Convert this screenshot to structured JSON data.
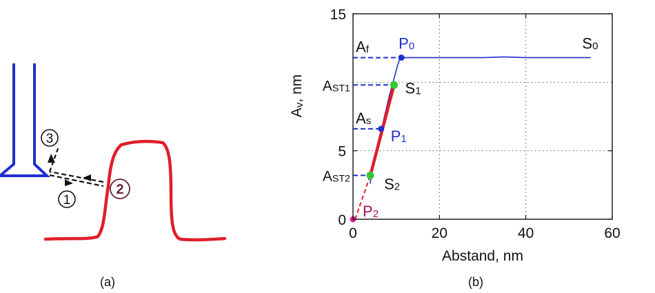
{
  "panel_a": {
    "caption": "(a)",
    "steps": [
      "3",
      "1",
      "2"
    ],
    "colors": {
      "tip": "#1f2fd0",
      "sample": "#e11d2a",
      "path": "#111111",
      "step2": "#6b1f3a"
    }
  },
  "panel_b": {
    "caption": "(b)"
  },
  "chart_data": {
    "type": "line",
    "xlabel": "Abstand, nm",
    "ylabel": "Av, nm",
    "xlim": [
      0,
      60
    ],
    "ylim": [
      0,
      15
    ],
    "xticks": [
      0,
      20,
      40,
      60
    ],
    "yticks": [
      0,
      5,
      15
    ],
    "grid": true,
    "colors": {
      "approach": "#1f2fd0",
      "fit": "#e11d2a",
      "ref": "#1f2fd0",
      "key_green": "#32c832",
      "key_blue": "#1f2fd0",
      "origin": "#e0218a"
    },
    "series": [
      {
        "id": "approach-curve",
        "x": [
          4.0,
          4.2,
          4.6,
          5.2,
          5.6,
          6.0,
          6.6,
          7.2,
          7.8,
          8.4,
          9.0,
          9.6,
          10.2,
          10.8,
          11.2,
          12,
          15,
          20,
          25,
          30,
          35,
          40,
          45,
          50,
          55
        ],
        "y": [
          2.6,
          3.2,
          3.8,
          4.5,
          5.2,
          5.9,
          6.6,
          7.4,
          8.2,
          9.0,
          9.7,
          10.4,
          11.1,
          11.7,
          11.8,
          11.8,
          11.8,
          11.8,
          11.8,
          11.8,
          11.85,
          11.8,
          11.8,
          11.8,
          11.8
        ]
      },
      {
        "id": "linear-fit",
        "x": [
          4.0,
          9.5
        ],
        "y": [
          3.2,
          9.8
        ]
      },
      {
        "id": "extrapolation",
        "x": [
          0.5,
          4.0
        ],
        "y": [
          0.0,
          3.2
        ]
      }
    ],
    "points": [
      {
        "label": "P",
        "sub": "0",
        "x": 11.2,
        "y": 11.8,
        "color": "#1f2fd0"
      },
      {
        "label": "S",
        "sub": "1",
        "x": 9.5,
        "y": 9.8,
        "color": "#32c832"
      },
      {
        "label": "P",
        "sub": "1",
        "x": 6.5,
        "y": 6.6,
        "color": "#1f2fd0"
      },
      {
        "label": "S",
        "sub": "2",
        "x": 4.0,
        "y": 3.2,
        "color": "#32c832"
      },
      {
        "label": "P",
        "sub": "2",
        "x": 0.0,
        "y": 0.0,
        "color": "#e0218a"
      }
    ],
    "annotations": [
      {
        "text": "S",
        "sub": "0",
        "x": 54,
        "y": 11.8
      },
      {
        "text": "A",
        "sub": "f",
        "y": 11.8
      },
      {
        "text": "A",
        "sub": "ST1",
        "y": 9.8
      },
      {
        "text": "A",
        "sub": "s",
        "y": 6.6
      },
      {
        "text": "A",
        "sub": "ST2",
        "y": 3.2
      }
    ]
  }
}
